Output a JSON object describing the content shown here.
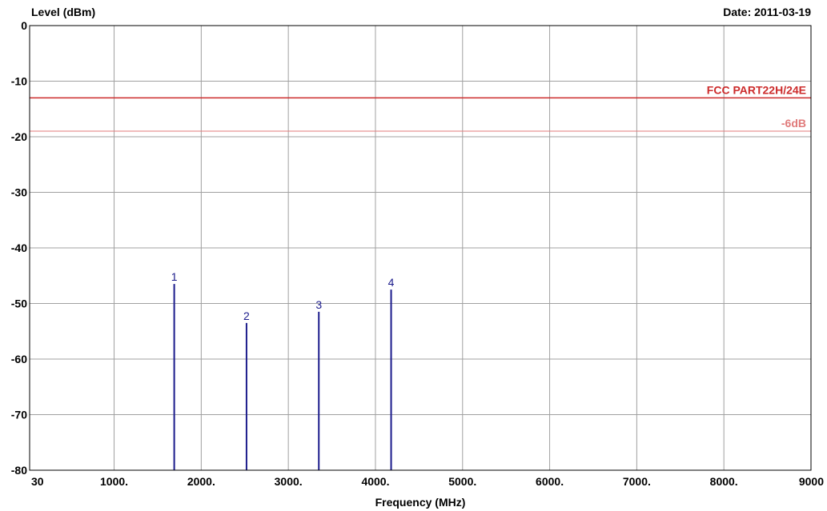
{
  "chart_data": {
    "type": "line",
    "ylabel": "Level (dBm)",
    "xlabel": "Frequency (MHz)",
    "date": "Date: 2011-03-19",
    "xlim": [
      30,
      9000
    ],
    "ylim": [
      -80,
      0
    ],
    "x_ticks": [
      {
        "value": 30,
        "label": "30"
      },
      {
        "value": 1000,
        "label": "1000."
      },
      {
        "value": 2000,
        "label": "2000."
      },
      {
        "value": 3000,
        "label": "3000."
      },
      {
        "value": 4000,
        "label": "4000."
      },
      {
        "value": 5000,
        "label": "5000."
      },
      {
        "value": 6000,
        "label": "6000."
      },
      {
        "value": 7000,
        "label": "7000."
      },
      {
        "value": 8000,
        "label": "8000."
      },
      {
        "value": 9000,
        "label": "9000"
      }
    ],
    "y_ticks": [
      {
        "value": 0,
        "label": "0"
      },
      {
        "value": -10,
        "label": "-10"
      },
      {
        "value": -20,
        "label": "-20"
      },
      {
        "value": -30,
        "label": "-30"
      },
      {
        "value": -40,
        "label": "-40"
      },
      {
        "value": -50,
        "label": "-50"
      },
      {
        "value": -60,
        "label": "-60"
      },
      {
        "value": -70,
        "label": "-70"
      },
      {
        "value": -80,
        "label": "-80"
      }
    ],
    "grid": true,
    "limit_lines": [
      {
        "name": "FCC PART22H/24E",
        "value": -13,
        "color": "#cc2b2b"
      },
      {
        "name": "-6dB",
        "value": -19,
        "color": "#e07a7a"
      }
    ],
    "markers": [
      {
        "label": "1",
        "x": 1690,
        "y": -46.5
      },
      {
        "label": "2",
        "x": 2520,
        "y": -53.5
      },
      {
        "label": "3",
        "x": 3350,
        "y": -51.5
      },
      {
        "label": "4",
        "x": 4180,
        "y": -47.5
      }
    ],
    "marker_color": "#1c1c8c",
    "grid_color": "#a0a0a0"
  }
}
